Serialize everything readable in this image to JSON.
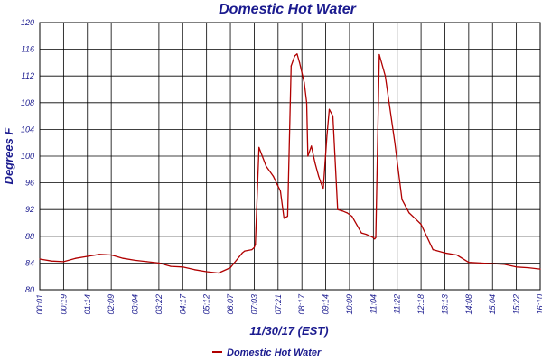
{
  "chart_data": {
    "type": "line",
    "title": "Domestic Hot Water",
    "xlabel": "11/30/17 (EST)",
    "ylabel": "Degrees F",
    "ylim": [
      80,
      120
    ],
    "yticks": [
      "80",
      "84",
      "88",
      "92",
      "96",
      "100",
      "104",
      "108",
      "112",
      "116",
      "120"
    ],
    "x_tick_labels": [
      "00:01",
      "00:19",
      "01:14",
      "02:09",
      "03:04",
      "03:22",
      "04:17",
      "05:12",
      "06:07",
      "07:03",
      "07:21",
      "08:17",
      "09:14",
      "10:09",
      "11:04",
      "11:22",
      "12:18",
      "13:13",
      "14:08",
      "15:04",
      "15:22",
      "16:10"
    ],
    "grid": true,
    "legend_position": "bottom",
    "series": [
      {
        "name": "Domestic Hot Water",
        "color": "#b00000",
        "x": [
          0,
          0.5,
          1,
          1.5,
          2,
          2.5,
          3,
          3.5,
          4,
          4.5,
          5,
          5.5,
          6,
          6.5,
          7,
          7.5,
          8,
          8.5,
          8.6,
          8.9,
          9,
          9.05,
          9.2,
          9.5,
          9.8,
          10,
          10.1,
          10.25,
          10.4,
          10.55,
          10.7,
          10.8,
          10.9,
          11.1,
          11.2,
          11.25,
          11.4,
          11.55,
          11.7,
          11.85,
          11.9,
          12.05,
          12.15,
          12.3,
          12.5,
          12.7,
          12.9,
          13.1,
          13.5,
          13.7,
          14,
          14.05,
          14.1,
          14.25,
          14.5,
          14.9,
          15.2,
          15.5,
          15.8,
          16,
          16.5,
          17,
          17.5,
          18,
          18.5,
          19,
          19.5,
          20,
          20.5,
          21
        ],
        "values": [
          84.6,
          84.3,
          84.2,
          84.7,
          85.0,
          85.3,
          85.2,
          84.7,
          84.4,
          84.2,
          84.0,
          83.5,
          83.4,
          83.0,
          82.7,
          82.5,
          83.3,
          85.5,
          85.8,
          86.0,
          86.3,
          86.8,
          101.3,
          98.5,
          97.0,
          95.5,
          94.8,
          90.7,
          91.0,
          113.5,
          115.0,
          115.3,
          114.0,
          111.0,
          108.0,
          100.0,
          101.5,
          99.0,
          97.0,
          95.5,
          95.2,
          103.0,
          107.0,
          106.0,
          92.0,
          91.8,
          91.5,
          91.0,
          88.5,
          88.3,
          87.8,
          87.6,
          87.8,
          115.2,
          112.0,
          102.0,
          93.5,
          91.5,
          90.5,
          89.8,
          86.0,
          85.5,
          85.2,
          84.1,
          84.0,
          83.9,
          83.8,
          83.4,
          83.3,
          83.1
        ]
      }
    ]
  }
}
